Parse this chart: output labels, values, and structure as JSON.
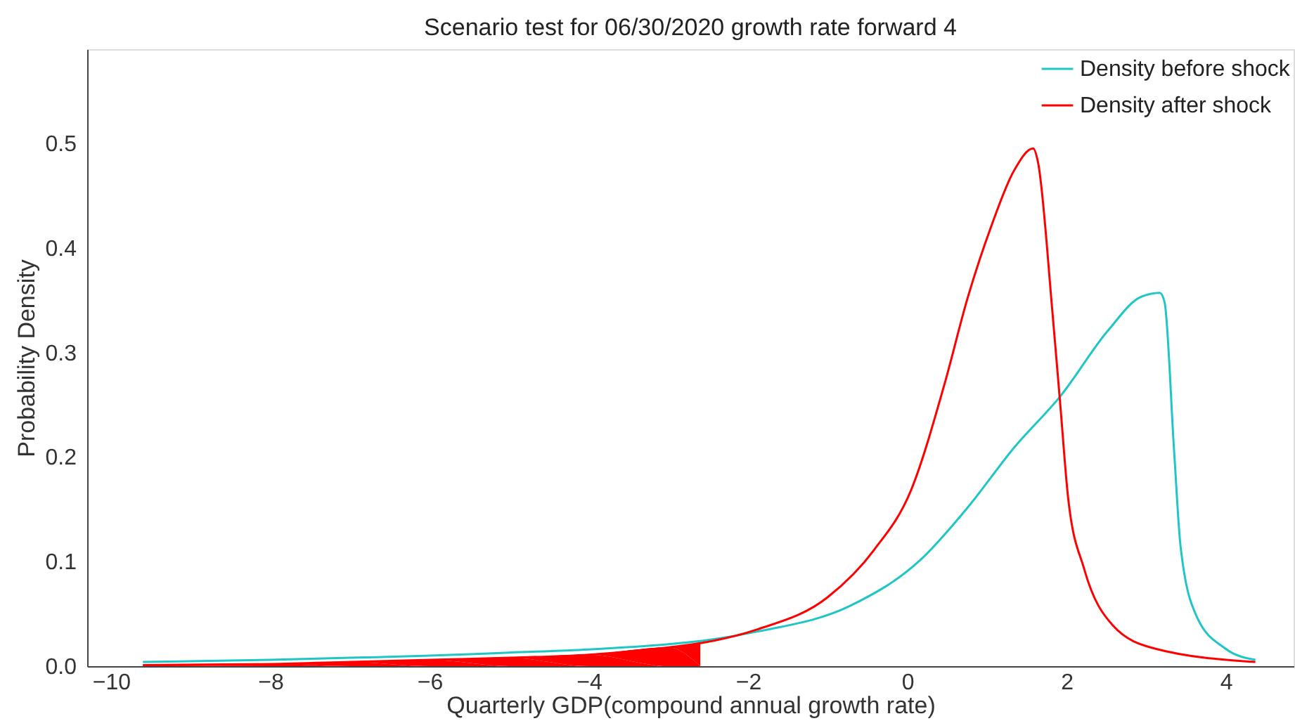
{
  "chart_data": {
    "type": "line",
    "title": "Scenario test for 06/30/2020 growth rate forward 4",
    "xlabel": "Quarterly GDP(compound annual growth rate)",
    "ylabel": "Probability Density",
    "xlim": [
      -10.3,
      4.85
    ],
    "ylim": [
      0,
      0.59
    ],
    "xticks": [
      {
        "value": -10,
        "label": "−10"
      },
      {
        "value": -8,
        "label": "−8"
      },
      {
        "value": -6,
        "label": "−6"
      },
      {
        "value": -4,
        "label": "−4"
      },
      {
        "value": -2,
        "label": "−2"
      },
      0,
      2,
      4
    ],
    "yticks": [
      {
        "value": 0,
        "label": "0.0"
      },
      0.1,
      0.2,
      0.3,
      0.4,
      0.5
    ],
    "grid": false,
    "legend": "top right",
    "line_style": "solid",
    "marker": "none",
    "series": [
      {
        "name": "Density before shock",
        "color": "#20c5c5",
        "x": [
          -9.6,
          -8,
          -7,
          -6,
          -5,
          -4,
          -3,
          -2.6,
          -1.89,
          -0.71,
          0.17,
          0.76,
          1.34,
          1.93,
          2.52,
          2.93,
          3.17,
          3.23,
          3.35,
          3.43,
          3.63,
          3.99,
          4.37
        ],
        "values": [
          0.004,
          0.006,
          0.008,
          0.01,
          0.013,
          0.016,
          0.021,
          0.024,
          0.033,
          0.058,
          0.102,
          0.152,
          0.209,
          0.259,
          0.321,
          0.353,
          0.357,
          0.348,
          0.205,
          0.115,
          0.048,
          0.017,
          0.006
        ]
      },
      {
        "name": "Density after shock",
        "color": "#ff0000",
        "x": [
          -9.6,
          -8,
          -7,
          -6,
          -5,
          -4,
          -3,
          -2.6,
          -1.89,
          -1.0,
          -0.42,
          0.05,
          0.46,
          0.76,
          1.05,
          1.34,
          1.58,
          1.64,
          1.82,
          1.92,
          2.02,
          2.22,
          2.58,
          3.1,
          4.37
        ],
        "values": [
          0.001,
          0.002,
          0.004,
          0.006,
          0.008,
          0.011,
          0.018,
          0.022,
          0.035,
          0.066,
          0.111,
          0.169,
          0.268,
          0.353,
          0.42,
          0.474,
          0.495,
          0.482,
          0.34,
          0.25,
          0.16,
          0.093,
          0.039,
          0.017,
          0.004
        ]
      },
      {
        "type": "area",
        "color": "#ff0000",
        "x": [
          -9.6,
          -8,
          -7,
          -6,
          -5,
          -4,
          -3,
          -2.6
        ],
        "values": [
          0.001,
          0.002,
          0.004,
          0.006,
          0.008,
          0.011,
          0.018,
          0.022
        ]
      }
    ]
  }
}
